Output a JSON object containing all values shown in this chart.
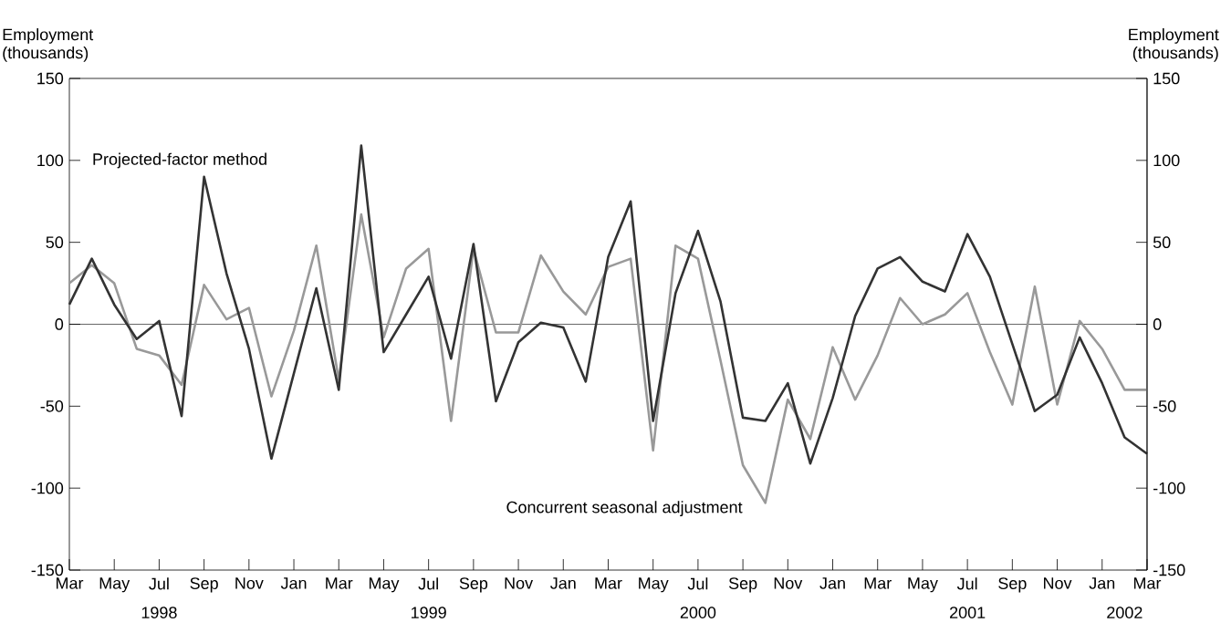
{
  "chart_data": {
    "type": "line",
    "ylabel": "Employment (thousands)",
    "y2label": "Employment (thousands)",
    "x": [
      "1998-03",
      "1998-04",
      "1998-05",
      "1998-06",
      "1998-07",
      "1998-08",
      "1998-09",
      "1998-10",
      "1998-11",
      "1998-12",
      "1999-01",
      "1999-02",
      "1999-03",
      "1999-04",
      "1999-05",
      "1999-06",
      "1999-07",
      "1999-08",
      "1999-09",
      "1999-10",
      "1999-11",
      "1999-12",
      "2000-01",
      "2000-02",
      "2000-03",
      "2000-04",
      "2000-05",
      "2000-06",
      "2000-07",
      "2000-08",
      "2000-09",
      "2000-10",
      "2000-11",
      "2000-12",
      "2001-01",
      "2001-02",
      "2001-03",
      "2001-04",
      "2001-05",
      "2001-06",
      "2001-07",
      "2001-08",
      "2001-09",
      "2001-10",
      "2001-11",
      "2001-12",
      "2002-01",
      "2002-02",
      "2002-03"
    ],
    "series": [
      {
        "name": "Concurrent seasonal adjustment",
        "color": "#999999",
        "values": [
          25,
          36,
          25,
          -15,
          -19,
          -37,
          24,
          3,
          10,
          -44,
          -4,
          48,
          -34,
          67,
          -8,
          34,
          46,
          -59,
          46,
          -5,
          -5,
          42,
          20,
          6,
          35,
          40,
          -77,
          48,
          40,
          -22,
          -86,
          -109,
          -46,
          -70,
          -14,
          -46,
          -19,
          16,
          0,
          6,
          19,
          -17,
          -49,
          23,
          -49,
          2,
          -15,
          -40,
          -40
        ]
      },
      {
        "name": "Projected-factor method",
        "color": "#333333",
        "values": [
          12,
          40,
          12,
          -9,
          2,
          -56,
          90,
          31,
          -15,
          -82,
          -30,
          22,
          -40,
          109,
          -17,
          6,
          29,
          -21,
          49,
          -47,
          -11,
          1,
          -2,
          -35,
          41,
          75,
          -59,
          19,
          57,
          14,
          -57,
          -59,
          -36,
          -85,
          -45,
          5,
          34,
          41,
          26,
          20,
          55,
          29,
          -12,
          -53,
          -43,
          -8,
          -36,
          -69,
          -79
        ]
      }
    ],
    "xlim": [
      "1998-03",
      "2002-03"
    ],
    "xticks": [
      {
        "value": "1998-03",
        "label": "Mar"
      },
      {
        "value": "1998-05",
        "label": "May"
      },
      {
        "value": "1998-07",
        "label": "Jul"
      },
      {
        "value": "1998-09",
        "label": "Sep"
      },
      {
        "value": "1998-11",
        "label": "Nov"
      },
      {
        "value": "1999-01",
        "label": "Jan"
      },
      {
        "value": "1999-03",
        "label": "Mar"
      },
      {
        "value": "1999-05",
        "label": "May"
      },
      {
        "value": "1999-07",
        "label": "Jul"
      },
      {
        "value": "1999-09",
        "label": "Sep"
      },
      {
        "value": "1999-11",
        "label": "Nov"
      },
      {
        "value": "2000-01",
        "label": "Jan"
      },
      {
        "value": "2000-03",
        "label": "Mar"
      },
      {
        "value": "2000-05",
        "label": "May"
      },
      {
        "value": "2000-07",
        "label": "Jul"
      },
      {
        "value": "2000-09",
        "label": "Sep"
      },
      {
        "value": "2000-11",
        "label": "Nov"
      },
      {
        "value": "2001-01",
        "label": "Jan"
      },
      {
        "value": "2001-03",
        "label": "Mar"
      },
      {
        "value": "2001-05",
        "label": "May"
      },
      {
        "value": "2001-07",
        "label": "Jul"
      },
      {
        "value": "2001-09",
        "label": "Sep"
      },
      {
        "value": "2001-11",
        "label": "Nov"
      },
      {
        "value": "2002-01",
        "label": "Jan"
      },
      {
        "value": "2002-03",
        "label": "Mar"
      }
    ],
    "ylim": [
      -150,
      150
    ],
    "yticks": [
      -150,
      -100,
      -50,
      0,
      50,
      100,
      150
    ],
    "y2lim": [
      -150,
      150
    ],
    "y2ticks": [
      -150,
      -100,
      -50,
      0,
      50,
      100,
      150
    ],
    "ref_lines": [
      {
        "axis": "y",
        "value": 0,
        "color": "#000000"
      }
    ],
    "annotations": [
      "1998",
      "1999",
      "2000",
      "2001",
      "2002"
    ],
    "grid": false,
    "marker": "none",
    "line_style": "solid"
  }
}
